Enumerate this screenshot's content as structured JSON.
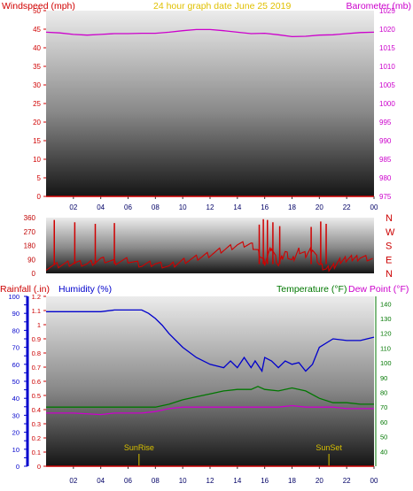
{
  "title": "24 hour graph date   June 25 2019",
  "colors": {
    "wind": "#d00000",
    "baro": "#cc00cc",
    "title": "#e0c000",
    "humidity": "#0000cc",
    "temperature": "#007700",
    "dewpoint": "#cc00cc",
    "rain": "#cc0000",
    "sun": "#d8c000",
    "rain_axis": "#0000cc"
  },
  "chart_data": [
    {
      "type": "line",
      "title": "24 hour graph date   June 25 2019",
      "xlabel": "",
      "x_ticks": [
        "02",
        "04",
        "06",
        "08",
        "10",
        "12",
        "14",
        "16",
        "18",
        "20",
        "22",
        "00"
      ],
      "y_left": {
        "label": "Windspeed (mph)",
        "ticks": [
          "50",
          "45",
          "40",
          "35",
          "30",
          "25",
          "20",
          "15",
          "10",
          "5",
          "0"
        ],
        "range": [
          0,
          50
        ]
      },
      "y_right": {
        "label": "Barometer (mb)",
        "ticks": [
          "1025",
          "1020",
          "1015",
          "1010",
          "1005",
          "1000",
          "995",
          "990",
          "985",
          "980",
          "975"
        ],
        "range": [
          975,
          1025
        ]
      },
      "series": [
        {
          "axis": "right",
          "x": [
            0,
            1,
            2,
            3,
            4,
            5,
            6,
            7,
            8,
            9,
            10,
            11,
            12,
            13,
            14,
            15,
            16,
            17,
            18,
            19,
            20,
            21,
            22,
            23,
            24
          ],
          "values": [
            1019.2,
            1019.0,
            1018.6,
            1018.4,
            1018.6,
            1018.8,
            1018.8,
            1018.9,
            1018.9,
            1019.2,
            1019.6,
            1019.9,
            1019.9,
            1019.6,
            1019.2,
            1018.8,
            1018.9,
            1018.5,
            1018.0,
            1018.1,
            1018.4,
            1018.5,
            1018.8,
            1019.1,
            1019.2
          ]
        },
        {
          "axis": "left",
          "x": [
            0,
            24
          ],
          "values": [
            0,
            0
          ]
        }
      ]
    },
    {
      "type": "line",
      "y_left": {
        "ticks": [
          "360",
          "270",
          "180",
          "90",
          "0"
        ],
        "range": [
          0,
          360
        ]
      },
      "y_right": {
        "ticks": [
          "N",
          "W",
          "S",
          "E",
          "N"
        ]
      },
      "series": [
        {
          "x": [
            0,
            1,
            2,
            3,
            4,
            5,
            6,
            7,
            8,
            9,
            10,
            11,
            12,
            13,
            14,
            15,
            15.5,
            16,
            16.5,
            17,
            17.5,
            18,
            18.5,
            19,
            19.5,
            20,
            20.5,
            21,
            21.5,
            22,
            22.5,
            23,
            24
          ],
          "values": [
            40,
            55,
            70,
            60,
            90,
            75,
            85,
            55,
            65,
            45,
            80,
            100,
            125,
            155,
            185,
            190,
            140,
            70,
            170,
            55,
            140,
            80,
            150,
            120,
            160,
            60,
            25,
            45,
            80,
            95,
            100,
            100,
            95
          ]
        }
      ],
      "spikes": [
        {
          "x": 0.6,
          "value": 345
        },
        {
          "x": 2.1,
          "value": 330
        },
        {
          "x": 3.6,
          "value": 320
        },
        {
          "x": 5.0,
          "value": 325
        },
        {
          "x": 15.6,
          "value": 315
        },
        {
          "x": 15.9,
          "value": 350
        },
        {
          "x": 16.2,
          "value": 345
        },
        {
          "x": 16.6,
          "value": 330
        },
        {
          "x": 17.1,
          "value": 305
        },
        {
          "x": 19.4,
          "value": 300
        },
        {
          "x": 20.1,
          "value": 335
        },
        {
          "x": 20.5,
          "value": 320
        }
      ]
    },
    {
      "type": "line",
      "x_ticks": [
        "02",
        "04",
        "06",
        "08",
        "10",
        "12",
        "14",
        "16",
        "18",
        "20",
        "22",
        "00"
      ],
      "y_humidity": {
        "label": "Humidity (%)",
        "ticks": [
          "100",
          "90",
          "80",
          "70",
          "60",
          "50",
          "40",
          "30",
          "20",
          "10",
          "0"
        ],
        "range": [
          0,
          100
        ]
      },
      "y_rain": {
        "label": "Rainfall (.in)",
        "ticks": [
          "1.2",
          "1.1",
          "1",
          "0.9",
          "0.8",
          "0.7",
          "0.6",
          "0.5",
          "0.4",
          "0.3",
          "0.2",
          "0.1",
          "0"
        ],
        "range": [
          0,
          1.2
        ]
      },
      "y_temp": {
        "label": "Temperature (°F)",
        "label2": "Dew Point (°F)",
        "ticks": [
          "140",
          "130",
          "120",
          "110",
          "100",
          "90",
          "80",
          "70",
          "60",
          "50",
          "40"
        ],
        "range": [
          30,
          145
        ]
      },
      "series": [
        {
          "name": "Humidity (%)",
          "axis": "humidity",
          "x": [
            0,
            1,
            2,
            3,
            4,
            5,
            6,
            7,
            7.5,
            8,
            8.5,
            9,
            10,
            11,
            12,
            13,
            13.5,
            14,
            14.5,
            15,
            15.3,
            15.8,
            16,
            16.5,
            17,
            17.5,
            18,
            18.5,
            19,
            19.5,
            20,
            21,
            22,
            23,
            24
          ],
          "values": [
            91,
            91,
            91,
            91,
            91,
            92,
            92,
            92,
            90,
            87,
            83,
            78,
            70,
            64,
            60,
            58,
            62,
            58,
            64,
            58,
            62,
            56,
            64,
            62,
            58,
            62,
            60,
            61,
            56,
            60,
            70,
            75,
            74,
            74,
            76
          ]
        },
        {
          "name": "Temperature (°F)",
          "axis": "temp",
          "x": [
            0,
            1,
            2,
            3,
            4,
            5,
            6,
            7,
            8,
            9,
            10,
            11,
            12,
            13,
            14,
            15,
            15.5,
            16,
            17,
            18,
            19,
            20,
            21,
            22,
            23,
            24
          ],
          "values": [
            70,
            70,
            70,
            70,
            70,
            70,
            70,
            70,
            70,
            72,
            75,
            77,
            79,
            81,
            82,
            82,
            84,
            82,
            81,
            83,
            81,
            76,
            73,
            73,
            72,
            72
          ]
        },
        {
          "name": "Dew Point (°F)",
          "axis": "temp",
          "x": [
            0,
            2,
            4,
            5,
            6,
            7,
            8,
            9,
            10,
            11,
            12,
            13,
            14,
            15,
            16,
            17,
            18,
            19,
            20,
            21,
            22,
            23,
            24
          ],
          "values": [
            66,
            66,
            65,
            66,
            66,
            66,
            67,
            69,
            70,
            70,
            70,
            70,
            70,
            70,
            70,
            70,
            71,
            70,
            70,
            70,
            69,
            69,
            69
          ]
        },
        {
          "name": "Rainfall (.in)",
          "axis": "rain",
          "x": [
            0,
            24
          ],
          "values": [
            0,
            0
          ]
        }
      ],
      "annotations": [
        {
          "text": "SunRise",
          "x": 6.8
        },
        {
          "text": "SunSet",
          "x": 20.7
        }
      ]
    }
  ]
}
